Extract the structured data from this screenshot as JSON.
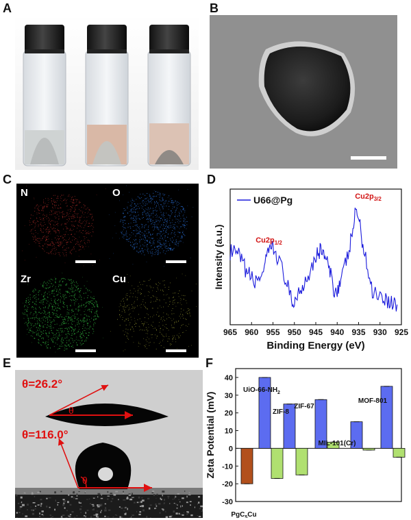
{
  "panels": {
    "A": {
      "label": "A"
    },
    "B": {
      "label": "B"
    },
    "C": {
      "label": "C",
      "maps": [
        "N",
        "O",
        "Zr",
        "Cu"
      ]
    },
    "D": {
      "label": "D"
    },
    "E": {
      "label": "E",
      "angle_top": "θ=26.2°",
      "angle_bottom": "θ=116.0°",
      "theta": "θ"
    },
    "F": {
      "label": "F"
    }
  },
  "colors": {
    "map_N": "#c0302c",
    "map_O": "#2a6fd6",
    "map_Zr": "#2fae3c",
    "map_Cu": "#c6c840",
    "xps_line": "#1a1adc",
    "peak_label": "#d21414",
    "angle_text": "#e01010",
    "bar_blue": "#5c6cf0",
    "bar_green": "#b0e070",
    "bar_brown": "#b2501c"
  },
  "chart_data": [
    {
      "type": "line",
      "panel": "D",
      "series": [
        {
          "name": "U66@Pg"
        }
      ],
      "xlabel": "Binding Energy (eV)",
      "ylabel": "Intensity (a.u.)",
      "xlim": [
        965,
        925
      ],
      "xticks": [
        "965",
        "960",
        "955",
        "950",
        "945",
        "940",
        "935",
        "930",
        "925"
      ],
      "annotations": [
        {
          "text": "Cu2p",
          "sub": "1/2",
          "x": 955
        },
        {
          "text": "Cu2p",
          "sub": "3/2",
          "x": 935
        }
      ],
      "x": [
        965,
        963,
        961,
        959,
        957,
        955.5,
        954,
        952,
        950.5,
        949,
        947,
        945,
        943.5,
        942,
        940.5,
        939,
        937,
        935.5,
        934,
        932,
        930,
        928,
        926
      ],
      "y": [
        0.55,
        0.52,
        0.38,
        0.3,
        0.42,
        0.6,
        0.52,
        0.32,
        0.12,
        0.22,
        0.35,
        0.52,
        0.58,
        0.42,
        0.22,
        0.32,
        0.6,
        0.92,
        0.62,
        0.25,
        0.2,
        0.15,
        0.12
      ]
    },
    {
      "type": "bar",
      "panel": "F",
      "ylabel": "Zeta Potential (mV)",
      "ylim": [
        -30,
        45
      ],
      "yticks": [
        "-30",
        "-20",
        "-10",
        "0",
        "10",
        "20",
        "30",
        "40"
      ],
      "categories": [
        "PgC5Cu",
        "UiO-66-NH2",
        "ZIF-8",
        "ZIF-67",
        "MIL-101(Cr)",
        "MOF-801"
      ],
      "bars": [
        {
          "category": "PgC5Cu",
          "value": -20,
          "color": "brown"
        },
        {
          "category": "UiO-66-NH2",
          "value": 40,
          "color": "blue"
        },
        {
          "category": "UiO-66-NH2",
          "value": -17,
          "color": "green"
        },
        {
          "category": "ZIF-8",
          "value": 25,
          "color": "blue"
        },
        {
          "category": "ZIF-8",
          "value": -15,
          "color": "green"
        },
        {
          "category": "ZIF-67",
          "value": 27.5,
          "color": "blue"
        },
        {
          "category": "ZIF-67",
          "value": 3.5,
          "color": "green"
        },
        {
          "category": "MIL-101(Cr)",
          "value": 15,
          "color": "blue"
        },
        {
          "category": "MIL-101(Cr)",
          "value": -1,
          "color": "green"
        },
        {
          "category": "MOF-801",
          "value": 35,
          "color": "blue"
        },
        {
          "category": "MOF-801",
          "value": -5,
          "color": "green"
        }
      ],
      "bar_labels": [
        {
          "text": "PgC",
          "sub": "5",
          "after": "Cu"
        },
        {
          "text": "UiO-66-NH",
          "sub": "2",
          "after": ""
        },
        {
          "text": "ZIF-8",
          "sub": "",
          "after": ""
        },
        {
          "text": "ZIF-67",
          "sub": "",
          "after": ""
        },
        {
          "text": "MIL-101(Cr)",
          "sub": "",
          "after": ""
        },
        {
          "text": "MOF-801",
          "sub": "",
          "after": ""
        }
      ]
    }
  ]
}
